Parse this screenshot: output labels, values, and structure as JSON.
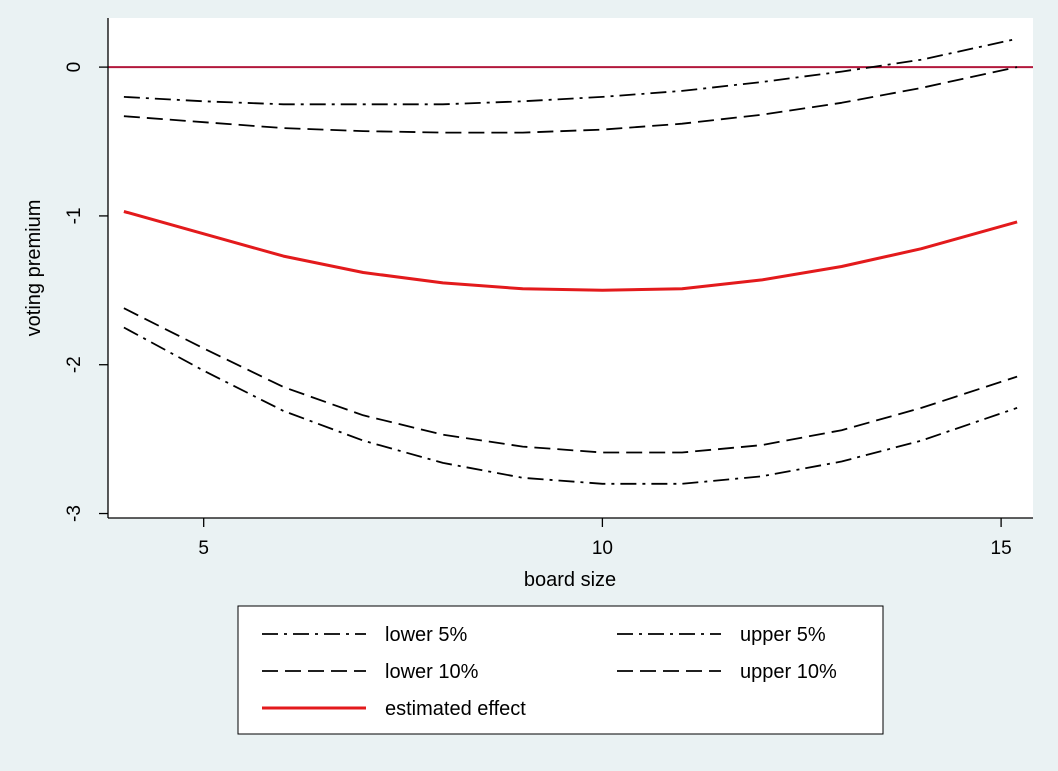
{
  "chart_data": {
    "type": "line",
    "xlabel": "board size",
    "ylabel": "voting premium",
    "xlim": [
      3.8,
      15.4
    ],
    "ylim": [
      -3.03,
      0.33
    ],
    "xticks": [
      5,
      10,
      15
    ],
    "yticks": [
      0,
      -1,
      -2,
      -3
    ],
    "x": [
      4,
      5,
      6,
      7,
      8,
      9,
      10,
      11,
      12,
      13,
      14,
      15.2
    ],
    "reference_line": {
      "y": 0,
      "color": "#b2183c"
    },
    "series": [
      {
        "name": "lower 5%",
        "style": "dashdot",
        "color": "#000000",
        "values": [
          -1.75,
          -2.04,
          -2.31,
          -2.51,
          -2.66,
          -2.76,
          -2.8,
          -2.8,
          -2.75,
          -2.65,
          -2.51,
          -2.29
        ]
      },
      {
        "name": "upper 5%",
        "style": "dashdot",
        "color": "#000000",
        "values": [
          -0.2,
          -0.23,
          -0.25,
          -0.25,
          -0.25,
          -0.23,
          -0.2,
          -0.16,
          -0.1,
          -0.03,
          0.05,
          0.19
        ]
      },
      {
        "name": "lower 10%",
        "style": "dash",
        "color": "#000000",
        "values": [
          -1.62,
          -1.89,
          -2.15,
          -2.34,
          -2.47,
          -2.55,
          -2.59,
          -2.59,
          -2.54,
          -2.44,
          -2.29,
          -2.08
        ]
      },
      {
        "name": "upper 10%",
        "style": "dash",
        "color": "#000000",
        "values": [
          -0.33,
          -0.37,
          -0.41,
          -0.43,
          -0.44,
          -0.44,
          -0.42,
          -0.38,
          -0.32,
          -0.24,
          -0.14,
          0.0
        ]
      },
      {
        "name": "estimated effect",
        "style": "solid",
        "color": "#e31a1c",
        "values": [
          -0.97,
          -1.12,
          -1.27,
          -1.38,
          -1.45,
          -1.49,
          -1.5,
          -1.49,
          -1.43,
          -1.34,
          -1.22,
          -1.04
        ]
      }
    ],
    "grid": false,
    "legend_position": "bottom"
  }
}
